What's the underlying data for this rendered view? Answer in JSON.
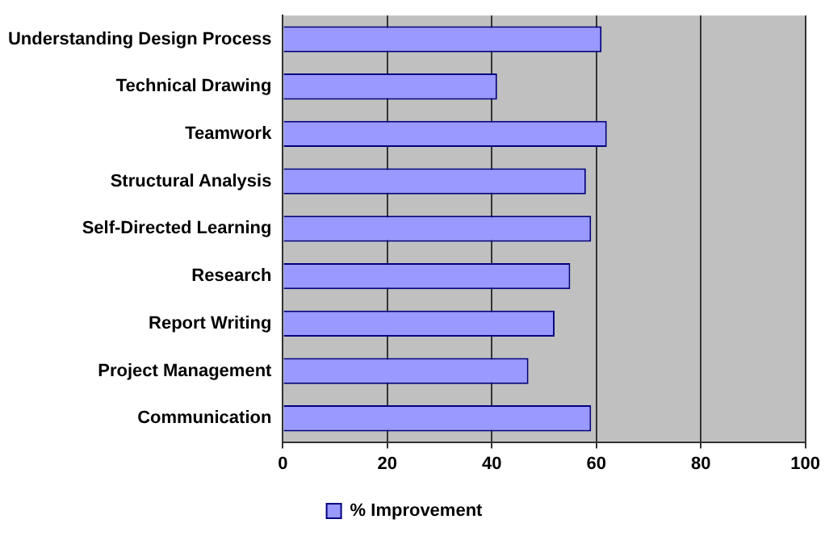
{
  "chart_data": {
    "type": "bar",
    "orientation": "horizontal",
    "categories": [
      "Understanding Design Process",
      "Technical Drawing",
      "Teamwork",
      "Structural Analysis",
      "Self-Directed Learning",
      "Research",
      "Report Writing",
      "Project Management",
      "Communication"
    ],
    "series": [
      {
        "name": "% Improvement",
        "color": "#9999ff",
        "values": [
          61,
          41,
          62,
          58,
          59,
          55,
          52,
          47,
          59
        ]
      }
    ],
    "xlim": [
      0,
      100
    ],
    "xticks": [
      0,
      20,
      40,
      60,
      80,
      100
    ],
    "grid": "x",
    "legend": "bottom"
  }
}
